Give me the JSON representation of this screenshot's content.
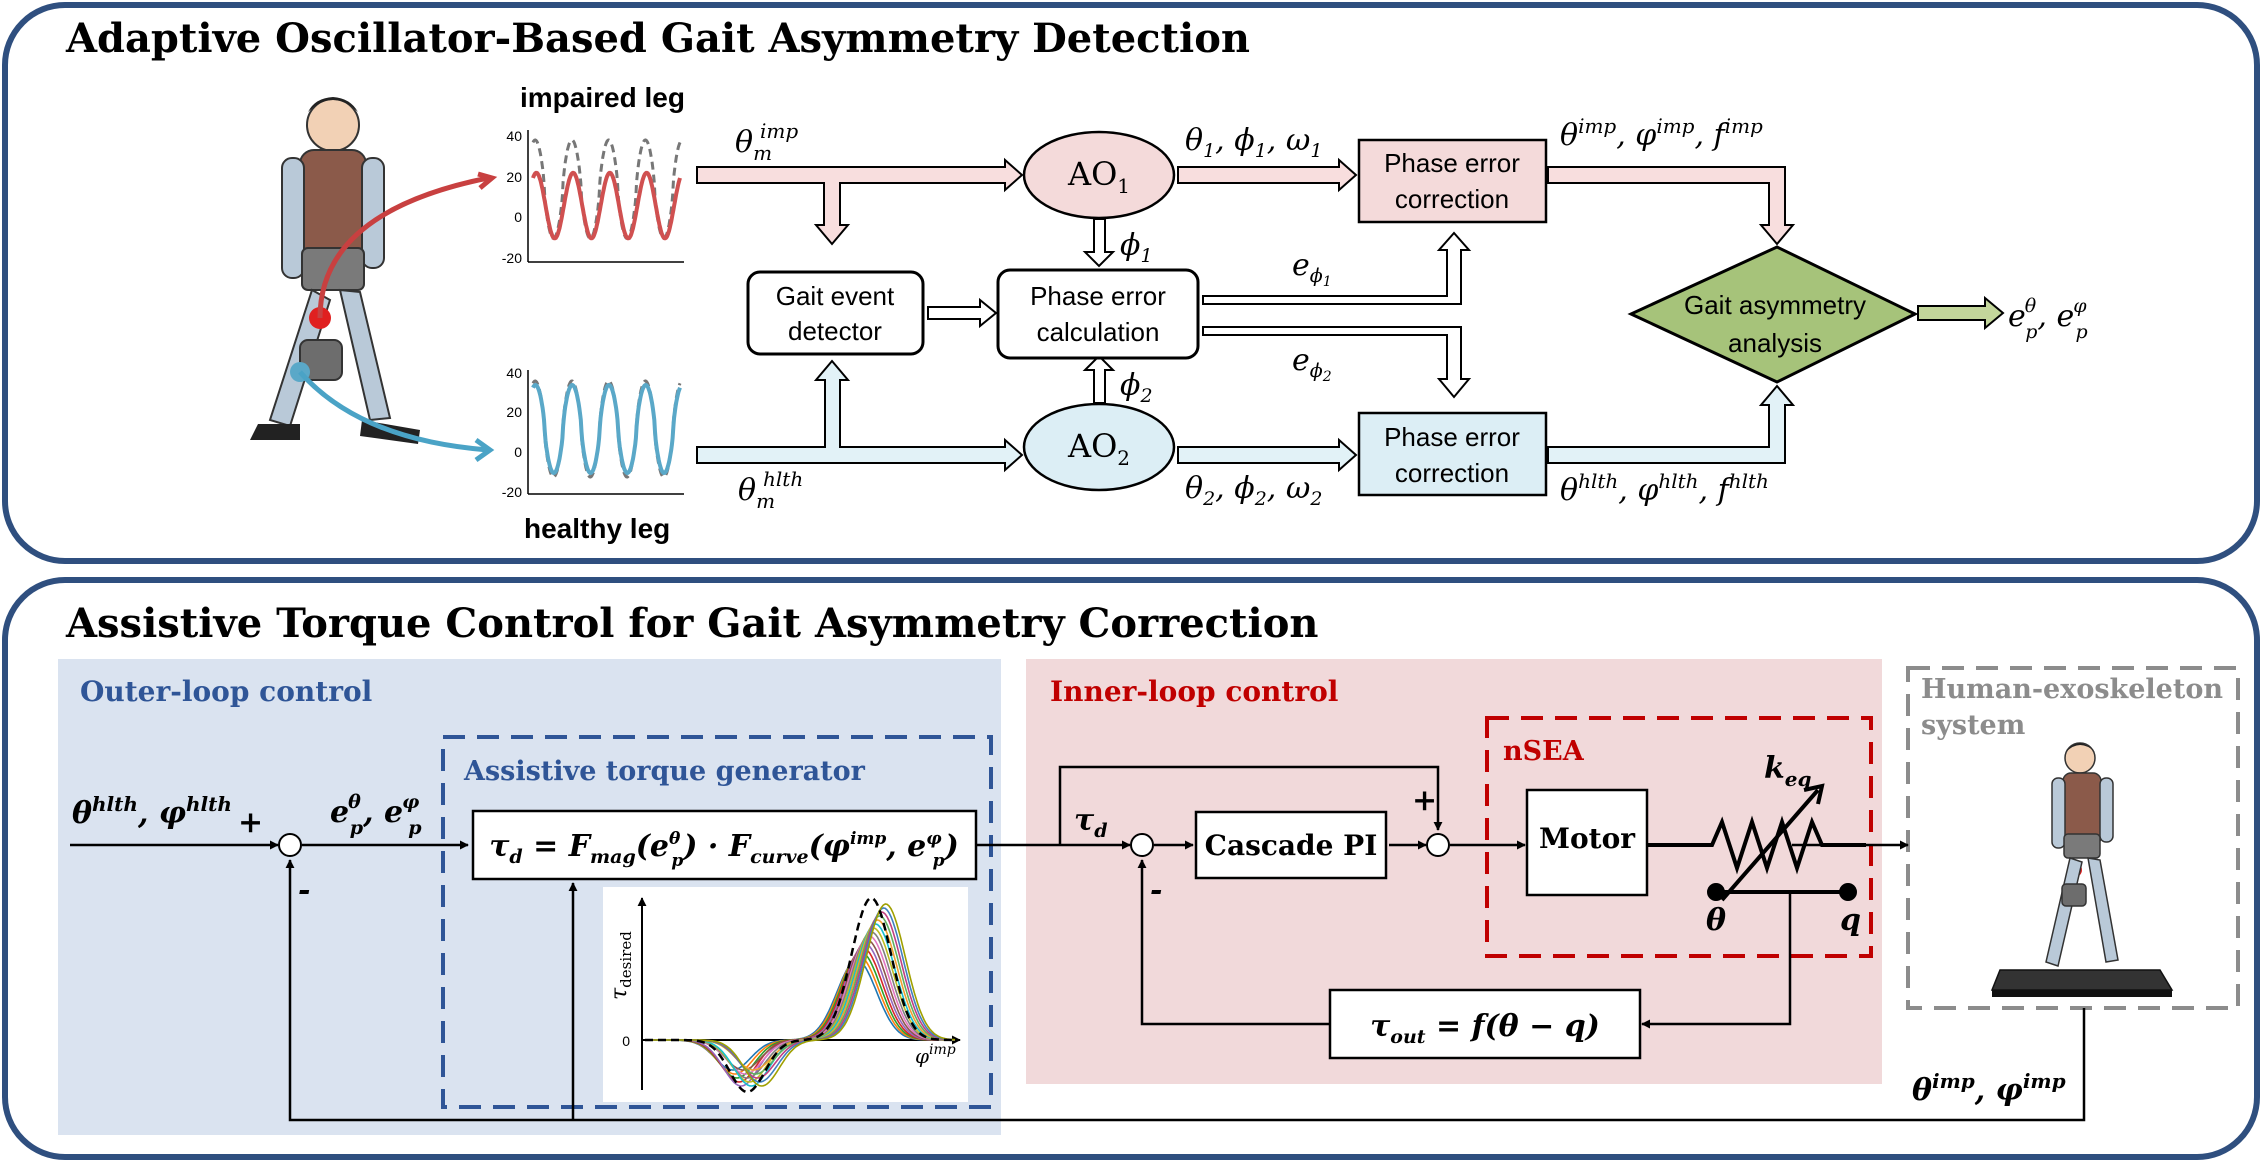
{
  "top_panel": {
    "title": "Adaptive Oscillator-Based Gait Asymmetry Detection",
    "impaired_label": "impaired leg",
    "healthy_label": "healthy leg",
    "plot_ticks": [
      "40",
      "20",
      "0",
      "-20"
    ],
    "input_imp": "θm^imp",
    "input_hlth": "θm^hlth",
    "ao1": "AO1",
    "ao2": "AO2",
    "ao1_out": "θ1, ϕ1, ω1",
    "ao2_out": "θ2, ϕ2, ω2",
    "phi1": "ϕ1",
    "phi2": "ϕ2",
    "gait_event_detector": [
      "Gait event",
      "detector"
    ],
    "phase_error_calc": [
      "Phase error",
      "calculation"
    ],
    "e_phi1": "eϕ1",
    "e_phi2": "eϕ2",
    "phase_corr_top": [
      "Phase error",
      "correction"
    ],
    "phase_corr_bottom": [
      "Phase error",
      "correction"
    ],
    "out_imp": "θ^imp, φ^imp, f^imp",
    "out_hlth": "θ^hlth, φ^hlth, f^hlth",
    "asym_analysis": [
      "Gait asymmetry",
      "analysis"
    ],
    "asym_out": "ep^θ, ep^φ"
  },
  "bottom_panel": {
    "title": "Assistive Torque Control for Gait Asymmetry Correction",
    "outer_loop": "Outer-loop control",
    "inner_loop": "Inner-loop control",
    "assist_gen": "Assistive torque generator",
    "nsea": "nSEA",
    "human_exo": [
      "Human-exoskeleton",
      "system"
    ],
    "ref_input": "θ^hlth, φ^hlth",
    "err_label": "ep^θ, ep^φ",
    "plus": "+",
    "minus": "-",
    "torque_eq": "τd = Fmag(ep^θ) · Fcurve(φ^imp, ep^φ)",
    "tau_d": "τd",
    "cascade_pi": "Cascade PI",
    "motor": "Motor",
    "k_eq": "keq",
    "theta": "θ",
    "q": "q",
    "tau_out_eq": "τout = f(θ − q)",
    "feedback_label": "θ^imp, φ^imp",
    "plot_ylabel": "τdesired",
    "plot_xlabel": "φ^imp",
    "plot_zero": "0"
  },
  "colors": {
    "panel_border": "#2f4f7f",
    "pink_fill": "#f4dada",
    "pink_arrow": "#f8dede",
    "blue_fill": "#dceef5",
    "blue_arrow": "#e2f2f7",
    "green_fill": "#a6c37a",
    "green_arrow": "#c3d69b",
    "outer_bg": "#dae3f0",
    "inner_bg": "#f1d9da",
    "outer_text": "#2f5597",
    "inner_text": "#c00000",
    "gen_border": "#2f5597",
    "nsea_border": "#c00000",
    "human_text": "#8c8c8c",
    "impaired_curve": "#d05050",
    "healthy_curve": "#5aa8c8"
  }
}
